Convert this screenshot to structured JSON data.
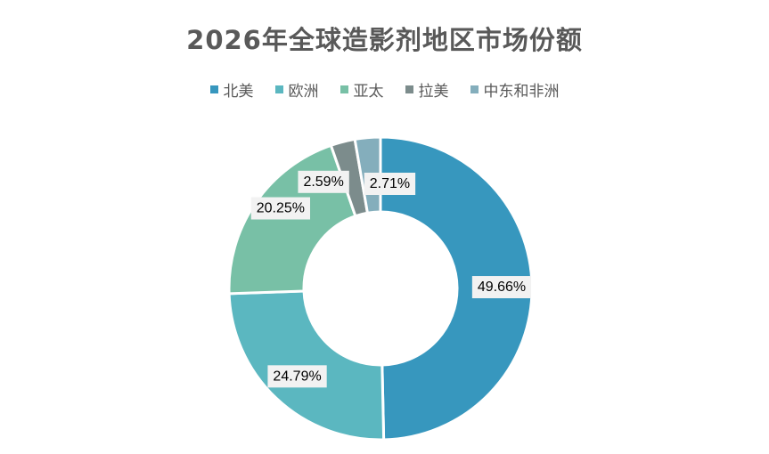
{
  "chart_data": {
    "type": "pie",
    "style": "donut",
    "title": "2026年全球造影剂地区市场份额",
    "legend_position": "top",
    "categories": [
      "北美",
      "欧洲",
      "亚太",
      "拉美",
      "中东和非洲"
    ],
    "values": [
      49.66,
      24.79,
      20.25,
      2.59,
      2.71
    ],
    "data_labels": [
      "49.66%",
      "24.79%",
      "20.25%",
      "2.59%",
      "2.71%"
    ],
    "colors": [
      "#3797be",
      "#5bb7c0",
      "#78c0a6",
      "#7c8c8c",
      "#84aebc"
    ],
    "start_angle_deg": 0,
    "direction": "clockwise"
  }
}
